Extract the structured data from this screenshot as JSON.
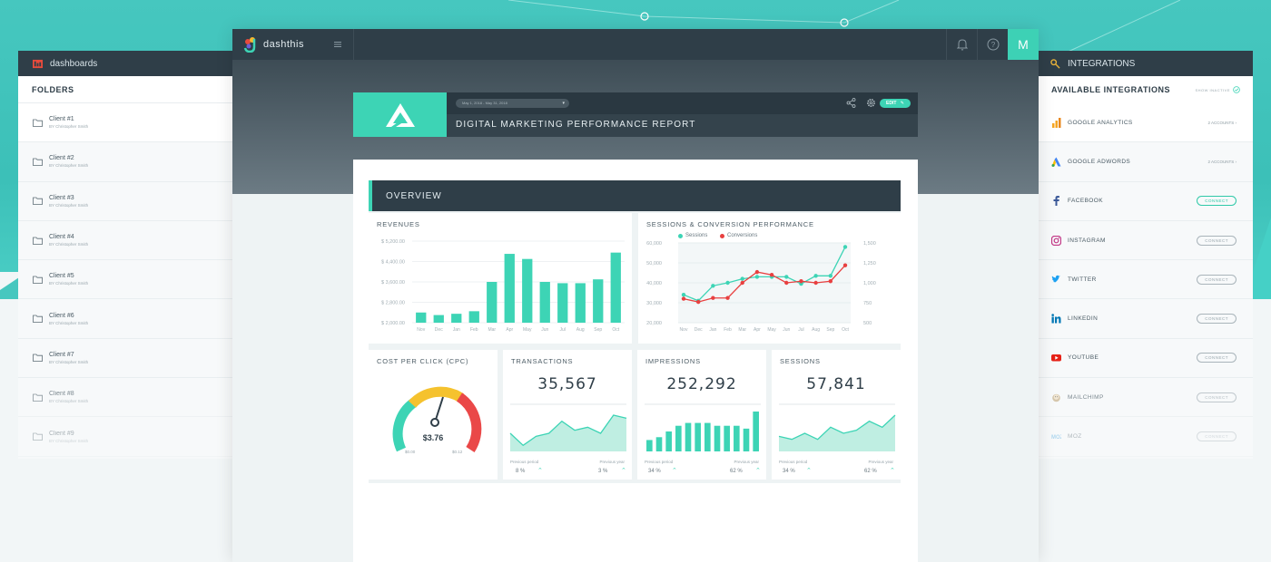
{
  "left_panel": {
    "header": "dashboards",
    "title": "FOLDERS",
    "folders": [
      {
        "name": "Client #1",
        "by": "BY Christopher Smith"
      },
      {
        "name": "Client #2",
        "by": "BY Christopher Smith"
      },
      {
        "name": "Client #3",
        "by": "BY Christopher Smith"
      },
      {
        "name": "Client #4",
        "by": "BY Christopher Smith"
      },
      {
        "name": "Client #5",
        "by": "BY Christopher Smith"
      },
      {
        "name": "Client #6",
        "by": "BY Christopher Smith"
      },
      {
        "name": "Client #7",
        "by": "BY Christopher Smith"
      },
      {
        "name": "Client #8",
        "by": "BY Christopher Smith"
      },
      {
        "name": "Client #9",
        "by": "BY Christopher Smith"
      }
    ]
  },
  "right_panel": {
    "header": "INTEGRATIONS",
    "title": "AVAILABLE INTEGRATIONS",
    "show_inactive": "SHOW INACTIVE",
    "integrations": [
      {
        "name": "GOOGLE ANALYTICS",
        "action": "2 ACCOUNTS",
        "type": "accounts",
        "icon": "google-analytics-icon"
      },
      {
        "name": "GOOGLE ADWORDS",
        "action": "2 ACCOUNTS",
        "type": "accounts",
        "icon": "google-adwords-icon"
      },
      {
        "name": "FACEBOOK",
        "action": "CONNECT",
        "type": "connect-teal",
        "icon": "facebook-icon"
      },
      {
        "name": "INSTAGRAM",
        "action": "CONNECT",
        "type": "connect",
        "icon": "instagram-icon"
      },
      {
        "name": "TWITTER",
        "action": "CONNECT",
        "type": "connect",
        "icon": "twitter-icon"
      },
      {
        "name": "LINKEDIN",
        "action": "CONNECT",
        "type": "connect",
        "icon": "linkedin-icon"
      },
      {
        "name": "YOUTUBE",
        "action": "CONNECT",
        "type": "connect",
        "icon": "youtube-icon"
      },
      {
        "name": "MAILCHIMP",
        "action": "CONNECT",
        "type": "connect",
        "icon": "mailchimp-icon"
      },
      {
        "name": "MOZ",
        "action": "CONNECT",
        "type": "connect",
        "icon": "moz-icon"
      }
    ]
  },
  "topbar": {
    "brand": "dashthis",
    "avatar": "M"
  },
  "report": {
    "date_range": "May 1, 2018 - May 31, 2018",
    "title": "DIGITAL MARKETING PERFORMANCE REPORT",
    "edit_label": "EDIT",
    "overview_label": "OVERVIEW"
  },
  "cards": {
    "revenues_title": "REVENUES",
    "sessions_conv_title": "SESSIONS & CONVERSION PERFORMANCE",
    "cpc_title": "COST PER CLICK (CPC)",
    "cpc_value": "$3.76",
    "cpc_min": "$0.00",
    "cpc_max": "$0.12",
    "transactions_title": "TRANSACTIONS",
    "transactions_value": "35,567",
    "impressions_title": "IMPRESSIONS",
    "impressions_value": "252,292",
    "sessions_title": "SESSIONS",
    "sessions_value": "57,841",
    "prev_period_label": "Previous period",
    "prev_year_label": "Previous year",
    "transactions_prev_period": "8 %",
    "transactions_prev_year": "3 %",
    "impressions_prev_period": "34 %",
    "impressions_prev_year": "62 %",
    "sessions_prev_period": "34 %",
    "sessions_prev_year": "62 %"
  },
  "chart_data": [
    {
      "type": "bar",
      "title": "REVENUES",
      "categories": [
        "Nov",
        "Dec",
        "Jan",
        "Feb",
        "Mar",
        "Apr",
        "May",
        "Jun",
        "Jul",
        "Aug",
        "Sep",
        "Oct"
      ],
      "values": [
        2400,
        2300,
        2350,
        2450,
        3600,
        4700,
        4500,
        3600,
        3550,
        3550,
        3700,
        4750
      ],
      "ylim": [
        2000,
        5200
      ],
      "yticks": [
        "$ 2,000.00",
        "$ 2,800.00",
        "$ 3,600.00",
        "$ 4,400.00",
        "$ 5,200.00"
      ],
      "color": "#3dd4b5"
    },
    {
      "type": "line",
      "title": "SESSIONS & CONVERSION PERFORMANCE",
      "categories": [
        "Nov",
        "Dec",
        "Jan",
        "Feb",
        "Mar",
        "Apr",
        "May",
        "Jun",
        "Jul",
        "Aug",
        "Sep",
        "Oct"
      ],
      "series": [
        {
          "name": "Sessions",
          "axis": "left",
          "color": "#3dd4b5",
          "values": [
            34000,
            31000,
            38500,
            40000,
            42000,
            43000,
            43000,
            43000,
            39500,
            43500,
            43500,
            58000
          ]
        },
        {
          "name": "Conversions",
          "axis": "right",
          "color": "#e84040",
          "values": [
            800,
            760,
            810,
            810,
            1000,
            1135,
            1100,
            1000,
            1020,
            1000,
            1020,
            1220
          ]
        }
      ],
      "ylim_left": [
        20000,
        60000
      ],
      "yticks_left": [
        "20,000",
        "30,000",
        "40,000",
        "50,000",
        "60,000"
      ],
      "ylim_right": [
        500,
        1500
      ],
      "yticks_right": [
        "500",
        "750",
        "1,000",
        "1,250",
        "1,500"
      ]
    },
    {
      "type": "area",
      "title": "TRANSACTIONS",
      "values": [
        6,
        2,
        5,
        6,
        10,
        7,
        8,
        6,
        12,
        11
      ],
      "color": "#3dd4b5"
    },
    {
      "type": "bar",
      "title": "IMPRESSIONS",
      "values": [
        4,
        5,
        7,
        9,
        10,
        10,
        10,
        9,
        9,
        9,
        8,
        14
      ],
      "color": "#3dd4b5"
    },
    {
      "type": "area",
      "title": "SESSIONS",
      "values": [
        5,
        4,
        6,
        4,
        8,
        6,
        7,
        10,
        8,
        12
      ],
      "color": "#3dd4b5"
    }
  ]
}
